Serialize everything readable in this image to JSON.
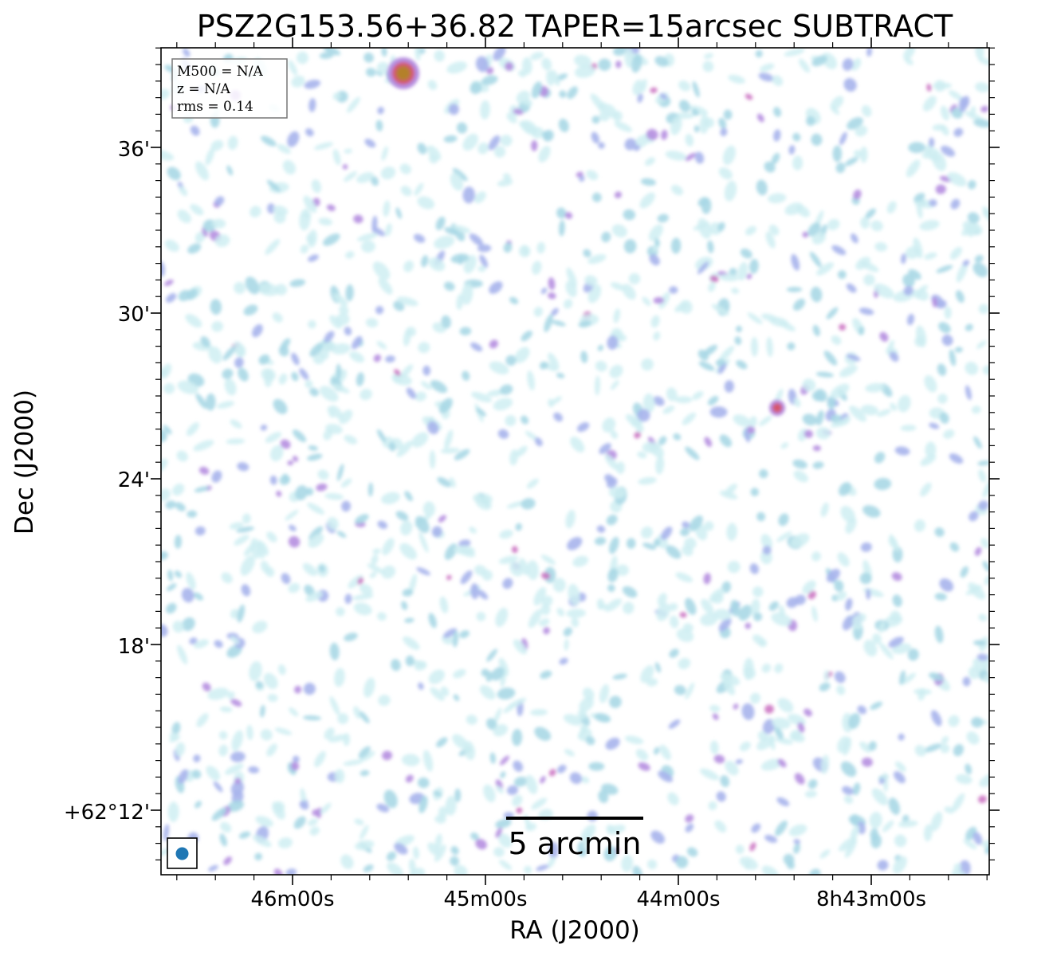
{
  "chart_data": {
    "type": "heatmap",
    "title": "PSZ2G153.56+36.82 TAPER=15arcsec SUBTRACT",
    "xlabel": "RA (J2000)",
    "ylabel": "Dec (J2000)",
    "x_ticks": [
      "46m00s",
      "45m00s",
      "44m00s",
      "8h43m00s"
    ],
    "y_ticks": [
      "+62°12'",
      "18'",
      "24'",
      "30'",
      "36'"
    ],
    "info_box": {
      "m500": "M500 = N/A",
      "z": "z = N/A",
      "rms": "rms = 0.14"
    },
    "scalebar_label": "5 arcmin",
    "beam_color": "#1f77b4",
    "colormap": [
      "#cfeef2",
      "#a8d8e6",
      "#a7b4ec",
      "#b58ee0",
      "#c96fbf",
      "#d4566e",
      "#b4802a"
    ],
    "notable_sources": [
      {
        "label": "bright source top",
        "intensity": "high"
      },
      {
        "label": "compact source right-center",
        "intensity": "medium"
      }
    ]
  }
}
